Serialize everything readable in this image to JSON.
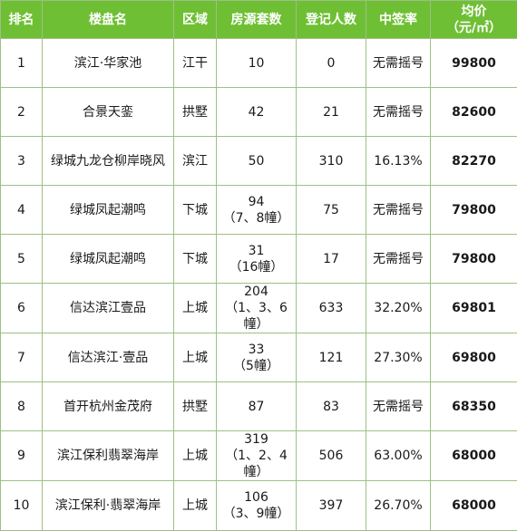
{
  "headers": {
    "rank": "排名",
    "name": "楼盘名",
    "district": "区域",
    "units": "房源套数",
    "registrants": "登记人数",
    "rate": "中签率",
    "price_line1": "均价",
    "price_line2": "（元/㎡）"
  },
  "rows": [
    {
      "rank": "1",
      "name": "滨江·华家池",
      "district": "江干",
      "units": "10",
      "units_note": "",
      "registrants": "0",
      "rate": "无需摇号",
      "price": "99800"
    },
    {
      "rank": "2",
      "name": "合景天銮",
      "district": "拱墅",
      "units": "42",
      "units_note": "",
      "registrants": "21",
      "rate": "无需摇号",
      "price": "82600"
    },
    {
      "rank": "3",
      "name": "绿城九龙仓柳岸晓风",
      "district": "滨江",
      "units": "50",
      "units_note": "",
      "registrants": "310",
      "rate": "16.13%",
      "price": "82270"
    },
    {
      "rank": "4",
      "name": "绿城凤起潮鸣",
      "district": "下城",
      "units": "94",
      "units_note": "（7、8幢）",
      "registrants": "75",
      "rate": "无需摇号",
      "price": "79800"
    },
    {
      "rank": "5",
      "name": "绿城凤起潮鸣",
      "district": "下城",
      "units": "31",
      "units_note": "（16幢）",
      "registrants": "17",
      "rate": "无需摇号",
      "price": "79800"
    },
    {
      "rank": "6",
      "name": "信达滨江壹品",
      "district": "上城",
      "units": "204",
      "units_note": "（1、3、6幢）",
      "registrants": "633",
      "rate": "32.20%",
      "price": "69801"
    },
    {
      "rank": "7",
      "name": "信达滨江·壹品",
      "district": "上城",
      "units": "33",
      "units_note": "（5幢）",
      "registrants": "121",
      "rate": "27.30%",
      "price": "69800"
    },
    {
      "rank": "8",
      "name": "首开杭州金茂府",
      "district": "拱墅",
      "units": "87",
      "units_note": "",
      "registrants": "83",
      "rate": "无需摇号",
      "price": "68350"
    },
    {
      "rank": "9",
      "name": "滨江保利翡翠海岸",
      "district": "上城",
      "units": "319",
      "units_note": "（1、2、4幢）",
      "registrants": "506",
      "rate": "63.00%",
      "price": "68000"
    },
    {
      "rank": "10",
      "name": "滨江保利·翡翠海岸",
      "district": "上城",
      "units": "106",
      "units_note": "（3、9幢）",
      "registrants": "397",
      "rate": "26.70%",
      "price": "68000"
    }
  ],
  "colors": {
    "header_bg": "#6fbf35",
    "header_text": "#ffffff",
    "border": "#9fbf86"
  }
}
